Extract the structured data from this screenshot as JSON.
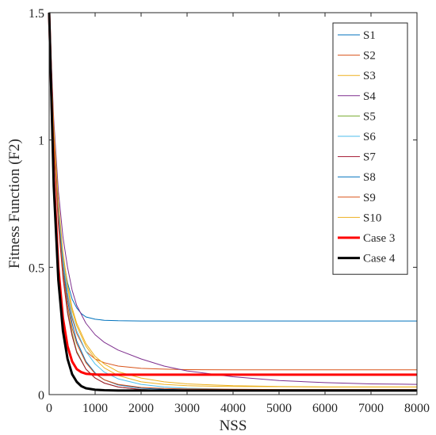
{
  "chart_data": {
    "type": "line",
    "title": "",
    "xlabel": "NSS",
    "ylabel": "Fitness Function (F2)",
    "xlim": [
      0,
      8000
    ],
    "ylim": [
      0,
      1.5
    ],
    "xticks": [
      0,
      1000,
      2000,
      3000,
      4000,
      5000,
      6000,
      7000,
      8000
    ],
    "yticks": [
      0,
      0.5,
      1,
      1.5
    ],
    "xtick_labels": [
      "0",
      "1000",
      "2000",
      "3000",
      "4000",
      "5000",
      "6000",
      "7000",
      "8000"
    ],
    "ytick_labels": [
      "0",
      "0.5",
      "1",
      "1.5"
    ],
    "grid": false,
    "legend_position": "top-right",
    "series": [
      {
        "name": "S1",
        "color": "#0072BD",
        "width": 1,
        "x": [
          0,
          100,
          200,
          300,
          400,
          500,
          600,
          700,
          800,
          1000,
          1200,
          1500,
          2000,
          3000,
          4000,
          5000,
          6000,
          7000,
          8000
        ],
        "y": [
          1.5,
          0.98,
          0.71,
          0.54,
          0.44,
          0.375,
          0.34,
          0.318,
          0.305,
          0.296,
          0.292,
          0.29,
          0.289,
          0.289,
          0.289,
          0.289,
          0.289,
          0.289,
          0.289
        ]
      },
      {
        "name": "S2",
        "color": "#D95319",
        "width": 1,
        "x": [
          0,
          100,
          200,
          300,
          400,
          500,
          600,
          800,
          1000,
          1200,
          1500,
          2000,
          2500,
          3000,
          4000,
          5000,
          6000,
          7000,
          8000
        ],
        "y": [
          1.5,
          1.02,
          0.72,
          0.52,
          0.39,
          0.3,
          0.24,
          0.17,
          0.14,
          0.125,
          0.112,
          0.103,
          0.1,
          0.098,
          0.097,
          0.097,
          0.097,
          0.097,
          0.097
        ]
      },
      {
        "name": "S3",
        "color": "#EDB120",
        "width": 1,
        "x": [
          0,
          100,
          200,
          300,
          400,
          500,
          600,
          800,
          1000,
          1200,
          1500,
          2000,
          2500,
          3000,
          3500,
          4000,
          5000,
          6000,
          7000,
          8000
        ],
        "y": [
          1.5,
          1.04,
          0.75,
          0.55,
          0.42,
          0.33,
          0.27,
          0.19,
          0.14,
          0.105,
          0.075,
          0.05,
          0.04,
          0.035,
          0.033,
          0.032,
          0.031,
          0.03,
          0.03,
          0.03
        ]
      },
      {
        "name": "S4",
        "color": "#7E2F8E",
        "width": 1,
        "x": [
          0,
          100,
          200,
          300,
          400,
          500,
          600,
          800,
          1000,
          1200,
          1500,
          2000,
          2500,
          3000,
          4000,
          5000,
          6000,
          7000,
          8000
        ],
        "y": [
          1.5,
          1.08,
          0.8,
          0.62,
          0.5,
          0.41,
          0.35,
          0.28,
          0.235,
          0.205,
          0.175,
          0.14,
          0.112,
          0.093,
          0.07,
          0.055,
          0.047,
          0.042,
          0.04
        ]
      },
      {
        "name": "S5",
        "color": "#77AC30",
        "width": 1,
        "x": [
          0,
          100,
          200,
          300,
          400,
          500,
          600,
          800,
          1000,
          1200,
          1500,
          2000,
          2500,
          3000,
          4000,
          5000,
          6000,
          7000,
          8000
        ],
        "y": [
          1.5,
          1.0,
          0.68,
          0.47,
          0.33,
          0.24,
          0.17,
          0.1,
          0.065,
          0.045,
          0.03,
          0.02,
          0.016,
          0.015,
          0.014,
          0.014,
          0.014,
          0.014,
          0.014
        ]
      },
      {
        "name": "S6",
        "color": "#4DBEEE",
        "width": 1,
        "x": [
          0,
          100,
          200,
          300,
          400,
          500,
          600,
          800,
          1000,
          1200,
          1500,
          2000,
          2500,
          3000,
          4000,
          5000,
          6000,
          7000,
          8000
        ],
        "y": [
          1.5,
          1.03,
          0.73,
          0.53,
          0.4,
          0.31,
          0.25,
          0.17,
          0.12,
          0.088,
          0.062,
          0.04,
          0.03,
          0.025,
          0.021,
          0.02,
          0.02,
          0.02,
          0.02
        ]
      },
      {
        "name": "S7",
        "color": "#A2142F",
        "width": 1,
        "x": [
          0,
          100,
          200,
          300,
          400,
          500,
          600,
          800,
          1000,
          1200,
          1500,
          2000,
          2500,
          3000,
          4000,
          5000,
          6000,
          7000,
          8000
        ],
        "y": [
          1.5,
          0.99,
          0.67,
          0.46,
          0.32,
          0.23,
          0.165,
          0.1,
          0.065,
          0.045,
          0.03,
          0.02,
          0.017,
          0.016,
          0.015,
          0.015,
          0.015,
          0.015,
          0.015
        ]
      },
      {
        "name": "S8",
        "color": "#0072BD",
        "width": 1,
        "x": [
          0,
          100,
          200,
          300,
          400,
          500,
          600,
          800,
          1000,
          1200,
          1500,
          2000,
          2500,
          3000,
          4000,
          5000,
          6000,
          7000,
          8000
        ],
        "y": [
          1.5,
          1.02,
          0.71,
          0.5,
          0.37,
          0.28,
          0.21,
          0.13,
          0.085,
          0.058,
          0.038,
          0.025,
          0.021,
          0.019,
          0.018,
          0.018,
          0.018,
          0.018,
          0.018
        ]
      },
      {
        "name": "S9",
        "color": "#D95319",
        "width": 1,
        "x": [
          0,
          100,
          200,
          300,
          400,
          500,
          600,
          800,
          1000,
          1200,
          1500,
          2000,
          2500,
          3000,
          4000,
          5000,
          6000,
          7000,
          8000
        ],
        "y": [
          1.5,
          1.0,
          0.69,
          0.48,
          0.35,
          0.26,
          0.2,
          0.125,
          0.082,
          0.058,
          0.04,
          0.028,
          0.024,
          0.022,
          0.021,
          0.02,
          0.02,
          0.02,
          0.02
        ]
      },
      {
        "name": "S10",
        "color": "#EDB120",
        "width": 1,
        "x": [
          0,
          100,
          200,
          300,
          400,
          500,
          600,
          800,
          1000,
          1200,
          1500,
          2000,
          2500,
          3000,
          4000,
          5000,
          6000,
          7000,
          8000
        ],
        "y": [
          1.5,
          1.05,
          0.76,
          0.56,
          0.43,
          0.34,
          0.28,
          0.2,
          0.15,
          0.12,
          0.09,
          0.065,
          0.05,
          0.042,
          0.035,
          0.032,
          0.03,
          0.03,
          0.03
        ]
      },
      {
        "name": "Case 3",
        "color": "#FF0000",
        "width": 3,
        "x": [
          0,
          100,
          200,
          300,
          400,
          500,
          600,
          700,
          800,
          1000,
          1200,
          1500,
          2000,
          3000,
          4000,
          5000,
          6000,
          7000,
          8000
        ],
        "y": [
          1.5,
          0.86,
          0.5,
          0.3,
          0.19,
          0.13,
          0.1,
          0.088,
          0.082,
          0.079,
          0.078,
          0.078,
          0.078,
          0.078,
          0.078,
          0.078,
          0.078,
          0.078,
          0.078
        ]
      },
      {
        "name": "Case 4",
        "color": "#000000",
        "width": 3,
        "x": [
          0,
          100,
          200,
          300,
          400,
          500,
          600,
          700,
          800,
          1000,
          1200,
          1500,
          2000,
          3000,
          4000,
          5000,
          6000,
          7000,
          8000
        ],
        "y": [
          1.5,
          0.82,
          0.45,
          0.25,
          0.14,
          0.08,
          0.05,
          0.033,
          0.025,
          0.019,
          0.017,
          0.016,
          0.016,
          0.016,
          0.016,
          0.016,
          0.016,
          0.016,
          0.016
        ]
      }
    ]
  }
}
